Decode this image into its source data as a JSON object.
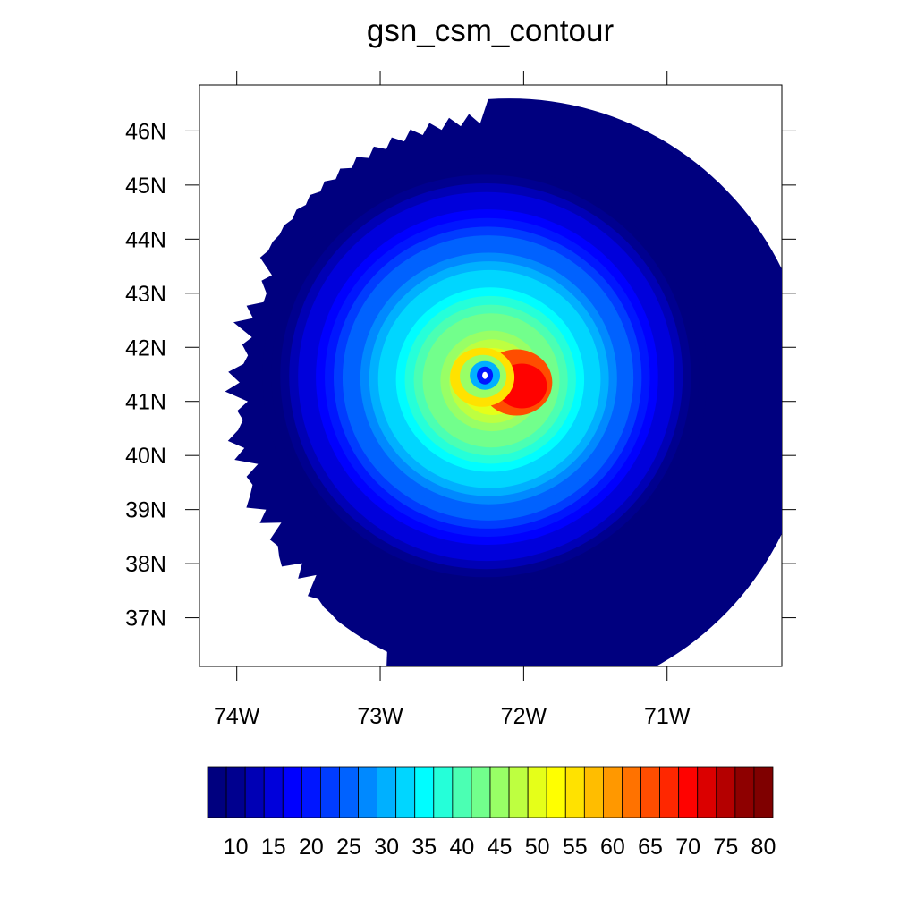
{
  "chart_data": {
    "type": "heatmap",
    "title": "gsn_csm_contour",
    "xlabel": "",
    "ylabel": "",
    "x_range": [
      -74.26,
      -70.2
    ],
    "y_range": [
      36.1,
      46.85
    ],
    "x_ticks": [
      {
        "value": -74,
        "label": "74W"
      },
      {
        "value": -73,
        "label": "73W"
      },
      {
        "value": -72,
        "label": "72W"
      },
      {
        "value": -71,
        "label": "71W"
      }
    ],
    "y_ticks": [
      {
        "value": 37,
        "label": "37N"
      },
      {
        "value": 38,
        "label": "38N"
      },
      {
        "value": 39,
        "label": "39N"
      },
      {
        "value": 40,
        "label": "40N"
      },
      {
        "value": 41,
        "label": "41N"
      },
      {
        "value": 42,
        "label": "42N"
      },
      {
        "value": 43,
        "label": "43N"
      },
      {
        "value": 44,
        "label": "44N"
      },
      {
        "value": 45,
        "label": "45N"
      },
      {
        "value": 46,
        "label": "46N"
      }
    ],
    "field": {
      "domain_center": {
        "lon": -72.1,
        "lat": 41.0
      },
      "domain_radius_deg": 3.2,
      "eye": {
        "lon": -72.27,
        "lat": 41.48
      },
      "max_wind_region": {
        "lon": -72.05,
        "lat": 41.35
      }
    },
    "colorbar": {
      "levels": [
        10,
        15,
        20,
        25,
        30,
        35,
        40,
        45,
        50,
        55,
        60,
        65,
        70,
        75,
        80
      ],
      "boxes": 30,
      "colors": [
        "#00007f",
        "#00008f",
        "#0000b5",
        "#0000db",
        "#0000ff",
        "#0016ff",
        "#003cff",
        "#0062ff",
        "#0089ff",
        "#00b0ff",
        "#00d6ff",
        "#00fdff",
        "#25ffd9",
        "#4bffb3",
        "#72ff8c",
        "#98ff66",
        "#beff40",
        "#e5ff19",
        "#ffff00",
        "#ffe200",
        "#ffbd00",
        "#ff9800",
        "#ff7200",
        "#ff4d00",
        "#ff2700",
        "#ff0200",
        "#db0000",
        "#b40000",
        "#8e0000",
        "#7f0000"
      ]
    }
  }
}
